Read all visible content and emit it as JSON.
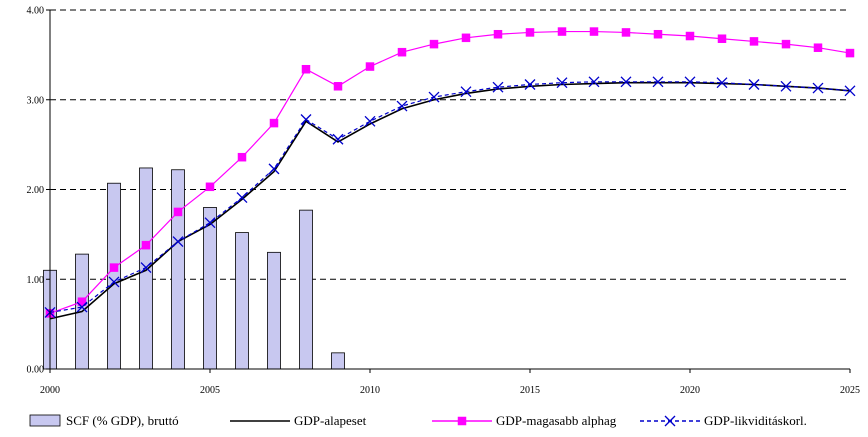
{
  "chart_data": {
    "type": "bar+line",
    "x": [
      2000,
      2001,
      2002,
      2003,
      2004,
      2005,
      2006,
      2007,
      2008,
      2009,
      2010,
      2011,
      2012,
      2013,
      2014,
      2015,
      2016,
      2017,
      2018,
      2019,
      2020,
      2021,
      2022,
      2023,
      2024,
      2025
    ],
    "xticks": [
      "2000",
      "2005",
      "2010",
      "2015",
      "2020",
      "2025"
    ],
    "yticks": [
      "0.00",
      "1.00",
      "2.00",
      "3.00",
      "4.00"
    ],
    "ylim": [
      0,
      4
    ],
    "xlim": [
      2000,
      2025
    ],
    "grid": "horizontal dashed",
    "legend_position": "bottom",
    "bars": {
      "name": "SCF (% GDP), bruttó",
      "color": "#c8c8f0",
      "x": [
        2000,
        2001,
        2002,
        2003,
        2004,
        2005,
        2006,
        2007,
        2008,
        2009
      ],
      "values": [
        1.1,
        1.28,
        2.07,
        2.24,
        2.22,
        1.8,
        1.52,
        1.3,
        1.77,
        0.18
      ]
    },
    "series": [
      {
        "name": "GDP-alapeset",
        "color": "#000000",
        "style": "solid",
        "marker": "none",
        "values": [
          0.56,
          0.64,
          0.95,
          1.1,
          1.42,
          1.61,
          1.89,
          2.2,
          2.76,
          2.53,
          2.73,
          2.9,
          3.0,
          3.07,
          3.12,
          3.15,
          3.17,
          3.18,
          3.19,
          3.19,
          3.19,
          3.18,
          3.17,
          3.15,
          3.13,
          3.1
        ]
      },
      {
        "name": "GDP-magasabb alphag",
        "color": "#ff00ff",
        "style": "solid",
        "marker": "square",
        "values": [
          0.62,
          0.75,
          1.13,
          1.38,
          1.75,
          2.03,
          2.36,
          2.74,
          3.34,
          3.15,
          3.37,
          3.53,
          3.62,
          3.69,
          3.73,
          3.75,
          3.76,
          3.76,
          3.75,
          3.73,
          3.71,
          3.68,
          3.65,
          3.62,
          3.58,
          3.52
        ]
      },
      {
        "name": "GDP-likviditáskorl.",
        "color": "#0000cc",
        "style": "dashed",
        "marker": "x",
        "values": [
          0.63,
          0.69,
          0.97,
          1.13,
          1.42,
          1.63,
          1.91,
          2.23,
          2.78,
          2.56,
          2.76,
          2.93,
          3.03,
          3.09,
          3.14,
          3.17,
          3.19,
          3.2,
          3.2,
          3.2,
          3.2,
          3.19,
          3.17,
          3.15,
          3.13,
          3.1
        ]
      }
    ]
  }
}
